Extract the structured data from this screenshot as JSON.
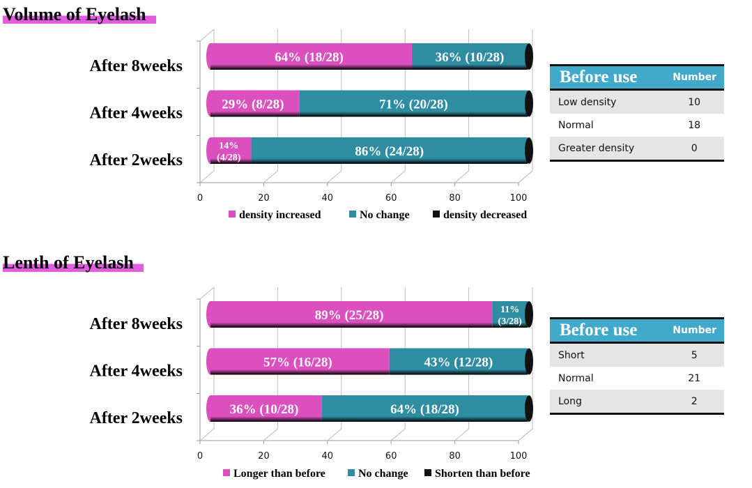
{
  "colors": {
    "increase": "#dc4fbf",
    "nochange": "#2f8da2",
    "decrease": "#111111",
    "table_header": "#41a9c9",
    "title_highlight": "#e25ce0"
  },
  "chart_data": [
    {
      "type": "bar",
      "stacked": true,
      "orientation": "horizontal",
      "style": "3d-cylinder",
      "title": "Volume of Eyelash",
      "categories": [
        "After 8weeks",
        "After 4weeks",
        "After 2weeks"
      ],
      "xlim": [
        0,
        100
      ],
      "xticks": [
        "0",
        "20",
        "40",
        "60",
        "80",
        "100"
      ],
      "grid": true,
      "legend": "bottom",
      "series": [
        {
          "name": "density increased",
          "values": [
            64,
            29,
            14
          ],
          "labels": [
            "64% (18/28)",
            "29% (8/28)",
            "14% (4/28)"
          ]
        },
        {
          "name": "No change",
          "values": [
            36,
            71,
            86
          ],
          "labels": [
            "36% (10/28)",
            "71% (20/28)",
            "86% (24/28)"
          ]
        },
        {
          "name": "density decreased",
          "values": [
            0,
            0,
            0
          ],
          "labels": [
            "",
            "",
            ""
          ]
        }
      ]
    },
    {
      "type": "bar",
      "stacked": true,
      "orientation": "horizontal",
      "style": "3d-cylinder",
      "title": "Lenth of Eyelash",
      "categories": [
        "After 8weeks",
        "After 4weeks",
        "After 2weeks"
      ],
      "xlim": [
        0,
        100
      ],
      "xticks": [
        "0",
        "20",
        "40",
        "60",
        "80",
        "100"
      ],
      "grid": true,
      "legend": "bottom",
      "series": [
        {
          "name": "Longer than before",
          "values": [
            89,
            57,
            36
          ],
          "labels": [
            "89% (25/28)",
            "57% (16/28)",
            "36% (10/28)"
          ]
        },
        {
          "name": "No change",
          "values": [
            11,
            43,
            64
          ],
          "labels": [
            "11% (3/28)",
            "43% (12/28)",
            "64% (18/28)"
          ]
        },
        {
          "name": "Shorten than before",
          "values": [
            0,
            0,
            0
          ],
          "labels": [
            "",
            "",
            ""
          ]
        }
      ]
    }
  ],
  "tables": [
    {
      "header": [
        "Before use",
        "Number"
      ],
      "rows": [
        [
          "Low density",
          "10"
        ],
        [
          "Normal",
          "18"
        ],
        [
          "Greater density",
          "0"
        ]
      ]
    },
    {
      "header": [
        "Before use",
        "Number"
      ],
      "rows": [
        [
          "Short",
          "5"
        ],
        [
          "Normal",
          "21"
        ],
        [
          "Long",
          "2"
        ]
      ]
    }
  ]
}
